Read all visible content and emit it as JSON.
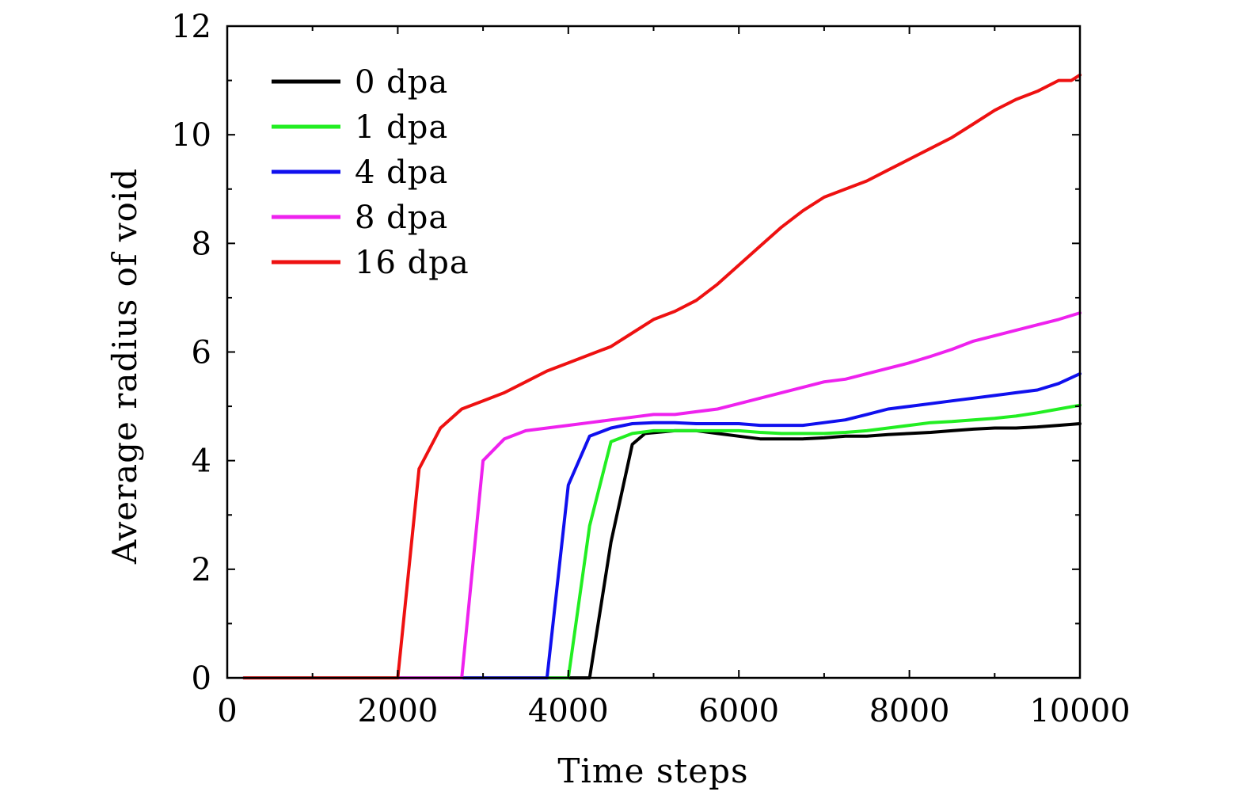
{
  "chart_data": {
    "type": "line",
    "title": "",
    "xlabel": "Time steps",
    "ylabel": "Average radius of void",
    "xlim": [
      0,
      10000
    ],
    "ylim": [
      0,
      12
    ],
    "x_ticks": [
      0,
      2000,
      4000,
      6000,
      8000,
      10000
    ],
    "x_tick_labels": [
      "0",
      "2000",
      "4000",
      "6000",
      "8000",
      "10000"
    ],
    "y_ticks": [
      0,
      2,
      4,
      6,
      8,
      10,
      12
    ],
    "y_tick_labels": [
      "0",
      "2",
      "4",
      "6",
      "8",
      "10",
      "12"
    ],
    "x_minor_step": 1000,
    "y_minor_step": 1,
    "grid": false,
    "legend_position": "top-left",
    "series": [
      {
        "name": "0 dpa",
        "color": "#000000",
        "x": [
          200,
          4250,
          4500,
          4750,
          4900,
          5250,
          5500,
          5750,
          6000,
          6250,
          6500,
          6750,
          7000,
          7250,
          7500,
          7750,
          8000,
          8250,
          8500,
          8750,
          9000,
          9250,
          9500,
          9750,
          10000
        ],
        "y": [
          0,
          0,
          2.5,
          4.3,
          4.5,
          4.55,
          4.55,
          4.5,
          4.45,
          4.4,
          4.4,
          4.4,
          4.42,
          4.45,
          4.45,
          4.48,
          4.5,
          4.52,
          4.55,
          4.58,
          4.6,
          4.6,
          4.62,
          4.65,
          4.68
        ]
      },
      {
        "name": "1 dpa",
        "color": "#22ee22",
        "x": [
          200,
          4000,
          4250,
          4500,
          4750,
          5000,
          5250,
          5500,
          5750,
          6000,
          6250,
          6500,
          6750,
          7000,
          7250,
          7500,
          7750,
          8000,
          8250,
          8500,
          8750,
          9000,
          9250,
          9500,
          9750,
          10000
        ],
        "y": [
          0,
          0,
          2.8,
          4.35,
          4.5,
          4.55,
          4.55,
          4.55,
          4.55,
          4.55,
          4.52,
          4.5,
          4.5,
          4.5,
          4.52,
          4.55,
          4.6,
          4.65,
          4.7,
          4.72,
          4.75,
          4.78,
          4.82,
          4.88,
          4.95,
          5.02
        ]
      },
      {
        "name": "4 dpa",
        "color": "#1010ee",
        "x": [
          200,
          3750,
          4000,
          4250,
          4500,
          4750,
          5000,
          5250,
          5500,
          5750,
          6000,
          6250,
          6500,
          6750,
          7000,
          7250,
          7500,
          7750,
          8000,
          8250,
          8500,
          8750,
          9000,
          9250,
          9500,
          9750,
          10000
        ],
        "y": [
          0,
          0,
          3.55,
          4.45,
          4.6,
          4.68,
          4.7,
          4.7,
          4.68,
          4.68,
          4.68,
          4.65,
          4.65,
          4.65,
          4.7,
          4.75,
          4.85,
          4.95,
          5.0,
          5.05,
          5.1,
          5.15,
          5.2,
          5.25,
          5.3,
          5.42,
          5.6
        ]
      },
      {
        "name": "8 dpa",
        "color": "#ee22ee",
        "x": [
          200,
          2750,
          3000,
          3250,
          3500,
          3750,
          4000,
          4250,
          4500,
          4750,
          5000,
          5250,
          5500,
          5750,
          6000,
          6250,
          6500,
          6750,
          7000,
          7250,
          7500,
          7750,
          8000,
          8250,
          8500,
          8750,
          9000,
          9250,
          9500,
          9750,
          10000
        ],
        "y": [
          0,
          0,
          4.0,
          4.4,
          4.55,
          4.6,
          4.65,
          4.7,
          4.75,
          4.8,
          4.85,
          4.85,
          4.9,
          4.95,
          5.05,
          5.15,
          5.25,
          5.35,
          5.45,
          5.5,
          5.6,
          5.7,
          5.8,
          5.92,
          6.05,
          6.2,
          6.3,
          6.4,
          6.5,
          6.6,
          6.72
        ]
      },
      {
        "name": "16 dpa",
        "color": "#ee1111",
        "x": [
          200,
          2000,
          2250,
          2500,
          2750,
          3000,
          3250,
          3500,
          3750,
          4000,
          4250,
          4500,
          4750,
          5000,
          5250,
          5500,
          5750,
          6000,
          6250,
          6500,
          6750,
          7000,
          7250,
          7500,
          7750,
          8000,
          8250,
          8500,
          8750,
          9000,
          9250,
          9500,
          9750,
          9900,
          10000
        ],
        "y": [
          0,
          0,
          3.85,
          4.6,
          4.95,
          5.1,
          5.25,
          5.45,
          5.65,
          5.8,
          5.95,
          6.1,
          6.35,
          6.6,
          6.75,
          6.95,
          7.25,
          7.6,
          7.95,
          8.3,
          8.6,
          8.85,
          9.0,
          9.15,
          9.35,
          9.55,
          9.75,
          9.95,
          10.2,
          10.45,
          10.65,
          10.8,
          11.0,
          11.0,
          11.1
        ]
      }
    ]
  }
}
